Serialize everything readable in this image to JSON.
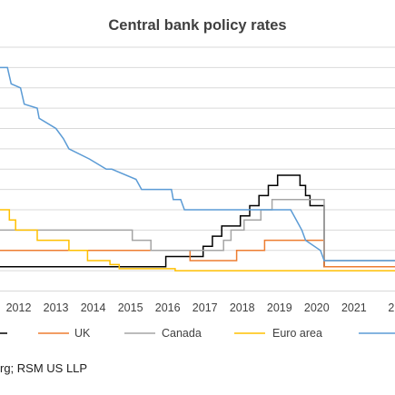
{
  "chart_data": {
    "type": "line",
    "title": "Central bank policy rates",
    "x_ticks": [
      "2012",
      "2013",
      "2014",
      "2015",
      "2016",
      "2017",
      "2018",
      "2019",
      "2020",
      "2021",
      "2"
    ],
    "xlim": [
      2011.5,
      2022.1
    ],
    "ylim": [
      -0.6,
      5.5
    ],
    "grid": true,
    "legend_position": "bottom",
    "series": [
      {
        "name": "",
        "color": "#000000",
        "points": [
          [
            2011.5,
            0.1
          ],
          [
            2015.95,
            0.1
          ],
          [
            2015.95,
            0.35
          ],
          [
            2016.95,
            0.35
          ],
          [
            2016.95,
            0.6
          ],
          [
            2017.2,
            0.6
          ],
          [
            2017.2,
            0.85
          ],
          [
            2017.45,
            0.85
          ],
          [
            2017.45,
            1.1
          ],
          [
            2017.95,
            1.1
          ],
          [
            2017.95,
            1.35
          ],
          [
            2018.2,
            1.35
          ],
          [
            2018.2,
            1.6
          ],
          [
            2018.45,
            1.6
          ],
          [
            2018.45,
            1.85
          ],
          [
            2018.7,
            1.85
          ],
          [
            2018.7,
            2.1
          ],
          [
            2018.95,
            2.1
          ],
          [
            2018.95,
            2.35
          ],
          [
            2019.55,
            2.35
          ],
          [
            2019.55,
            2.1
          ],
          [
            2019.7,
            2.1
          ],
          [
            2019.7,
            1.85
          ],
          [
            2019.82,
            1.85
          ],
          [
            2019.82,
            1.6
          ],
          [
            2020.2,
            1.6
          ],
          [
            2020.2,
            0.1
          ],
          [
            2022.1,
            0.1
          ]
        ]
      },
      {
        "name": "UK",
        "color": "#ed7d31",
        "points": [
          [
            2011.5,
            0.5
          ],
          [
            2016.6,
            0.5
          ],
          [
            2016.6,
            0.25
          ],
          [
            2017.85,
            0.25
          ],
          [
            2017.85,
            0.5
          ],
          [
            2018.6,
            0.5
          ],
          [
            2018.6,
            0.75
          ],
          [
            2020.2,
            0.75
          ],
          [
            2020.2,
            0.1
          ],
          [
            2022.1,
            0.1
          ]
        ]
      },
      {
        "name": "Canada",
        "color": "#a5a5a5",
        "points": [
          [
            2011.5,
            1.0
          ],
          [
            2015.05,
            1.0
          ],
          [
            2015.05,
            0.75
          ],
          [
            2015.55,
            0.75
          ],
          [
            2015.55,
            0.5
          ],
          [
            2017.5,
            0.5
          ],
          [
            2017.5,
            0.75
          ],
          [
            2017.7,
            0.75
          ],
          [
            2017.7,
            1.0
          ],
          [
            2018.05,
            1.0
          ],
          [
            2018.05,
            1.25
          ],
          [
            2018.5,
            1.25
          ],
          [
            2018.5,
            1.5
          ],
          [
            2018.8,
            1.5
          ],
          [
            2018.8,
            1.75
          ],
          [
            2020.2,
            1.75
          ],
          [
            2020.2,
            0.25
          ],
          [
            2022.1,
            0.25
          ]
        ]
      },
      {
        "name": "Euro area",
        "color": "#ffc000",
        "points": [
          [
            2011.5,
            1.5
          ],
          [
            2011.75,
            1.5
          ],
          [
            2011.75,
            1.25
          ],
          [
            2011.92,
            1.25
          ],
          [
            2011.92,
            1.0
          ],
          [
            2012.5,
            1.0
          ],
          [
            2012.5,
            0.75
          ],
          [
            2013.35,
            0.75
          ],
          [
            2013.35,
            0.5
          ],
          [
            2013.85,
            0.5
          ],
          [
            2013.85,
            0.25
          ],
          [
            2014.45,
            0.25
          ],
          [
            2014.45,
            0.15
          ],
          [
            2014.7,
            0.15
          ],
          [
            2014.7,
            0.05
          ],
          [
            2016.2,
            0.05
          ],
          [
            2016.2,
            0.0
          ],
          [
            2022.1,
            0.0
          ]
        ]
      },
      {
        "name": "",
        "color": "#5b9bd5",
        "points": [
          [
            2011.5,
            5.0
          ],
          [
            2011.7,
            5.0
          ],
          [
            2011.8,
            4.6
          ],
          [
            2012.05,
            4.5
          ],
          [
            2012.15,
            4.1
          ],
          [
            2012.5,
            4.0
          ],
          [
            2012.55,
            3.75
          ],
          [
            2013.0,
            3.5
          ],
          [
            2013.2,
            3.25
          ],
          [
            2013.35,
            3.0
          ],
          [
            2013.9,
            2.75
          ],
          [
            2014.35,
            2.5
          ],
          [
            2014.5,
            2.5
          ],
          [
            2015.15,
            2.25
          ],
          [
            2015.3,
            2.0
          ],
          [
            2016.1,
            2.0
          ],
          [
            2016.15,
            1.75
          ],
          [
            2016.35,
            1.75
          ],
          [
            2016.45,
            1.5
          ],
          [
            2019.3,
            1.5
          ],
          [
            2019.45,
            1.25
          ],
          [
            2019.6,
            1.0
          ],
          [
            2019.7,
            0.75
          ],
          [
            2020.1,
            0.5
          ],
          [
            2020.2,
            0.25
          ],
          [
            2022.1,
            0.25
          ]
        ]
      }
    ]
  },
  "source_note": "rg; RSM US LLP"
}
